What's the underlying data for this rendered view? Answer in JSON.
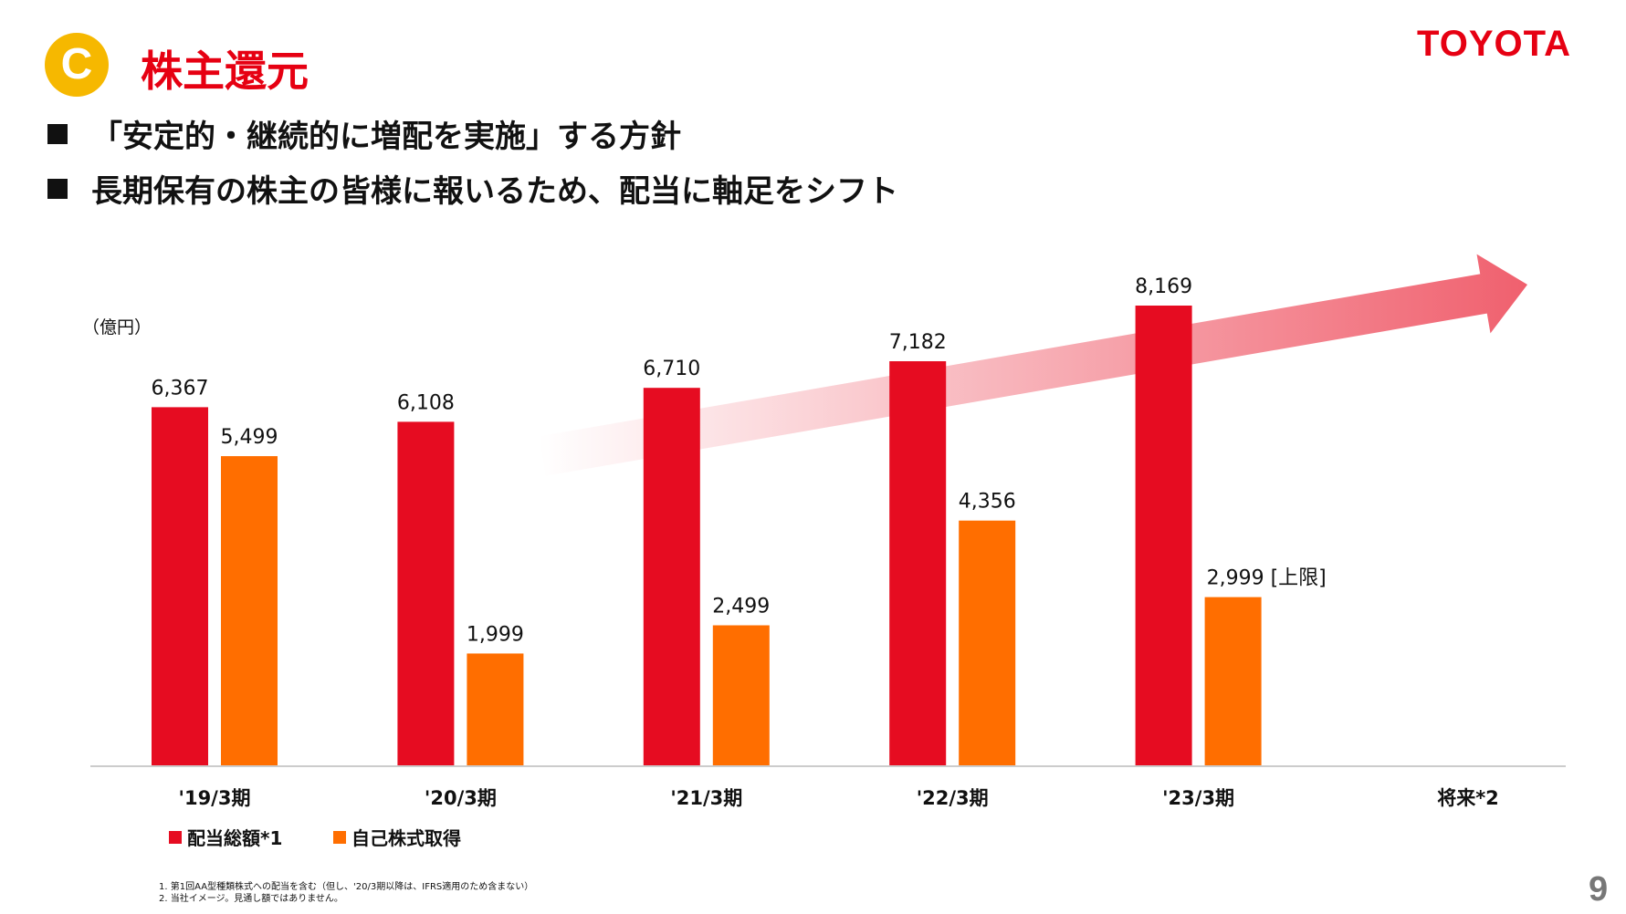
{
  "header": {
    "badge": "C",
    "title": "株主還元",
    "logo": "TOYOTA"
  },
  "bullets": [
    "「安定的・継続的に増配を実施」する方針",
    "長期保有の株主の皆様に報いるため、配当に軸足をシフト"
  ],
  "colors": {
    "dividend": "#e60c21",
    "buyback": "#ff6e00",
    "accent": "#e60012",
    "arrow": "#f0606e"
  },
  "chart_data": {
    "type": "bar",
    "unit_label": "（億円）",
    "categories": [
      "'19/3期",
      "'20/3期",
      "'21/3期",
      "'22/3期",
      "'23/3期",
      "将来*2"
    ],
    "series": [
      {
        "name": "配当総額*1",
        "values": [
          6367,
          6108,
          6710,
          7182,
          8169,
          null
        ],
        "labels": [
          "6,367",
          "6,108",
          "6,710",
          "7,182",
          "8,169",
          ""
        ]
      },
      {
        "name": "自己株式取得",
        "values": [
          5499,
          1999,
          2499,
          4356,
          2999,
          null
        ],
        "labels": [
          "5,499",
          "1,999",
          "2,499",
          "4,356",
          "2,999 [上限]",
          ""
        ]
      }
    ],
    "ylim": [
      0,
      8169
    ],
    "grid": false,
    "legend": "bottom-left",
    "annotation": "upward trend arrow toward 将来"
  },
  "footnotes": [
    "1. 第1回AA型種類株式への配当を含む（但し、'20/3期以降は、IFRS適用のため含まない）",
    "2. 当社イメージ。見通し額ではありません。"
  ],
  "page_number": "9"
}
